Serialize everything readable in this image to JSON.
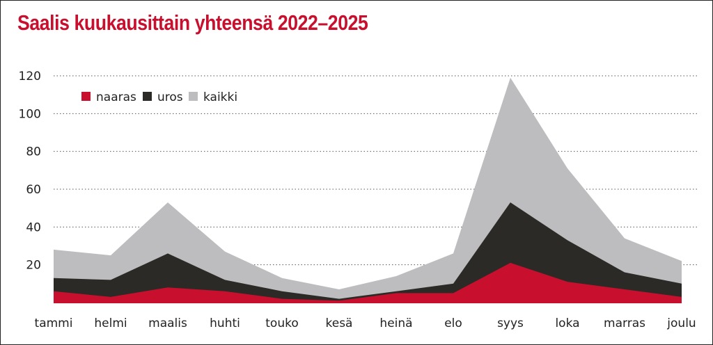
{
  "chart_data": {
    "type": "area",
    "title": "Saalis kuukausittain yhteensä 2022–2025",
    "categories": [
      "tammi",
      "helmi",
      "maalis",
      "huhti",
      "touko",
      "kesä",
      "heinä",
      "elo",
      "syys",
      "loka",
      "marras",
      "joulu"
    ],
    "series": [
      {
        "name": "naaras",
        "color": "#c8102e",
        "values": [
          6,
          3,
          8,
          6,
          2,
          1,
          5,
          5,
          21,
          11,
          7,
          3
        ]
      },
      {
        "name": "uros",
        "color": "#2b2a26",
        "values": [
          13,
          12,
          26,
          12,
          6,
          2,
          6,
          10,
          53,
          33,
          16,
          10
        ]
      },
      {
        "name": "kaikki",
        "color": "#bdbdbf",
        "values": [
          28,
          25,
          53,
          27,
          13,
          7,
          14,
          26,
          119,
          71,
          34,
          22
        ]
      }
    ],
    "ylim": [
      0,
      120
    ],
    "yticks": [
      20,
      40,
      60,
      80,
      100,
      120
    ],
    "grid": true,
    "legend_position": "top-left"
  }
}
